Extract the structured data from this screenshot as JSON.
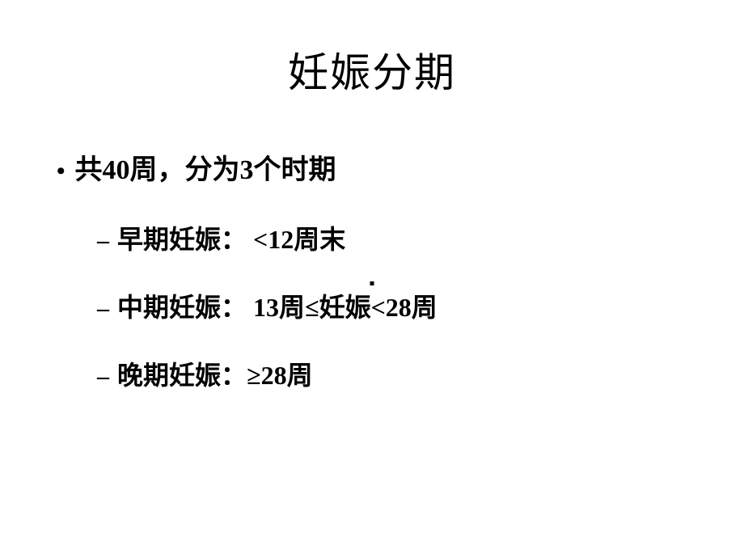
{
  "slide": {
    "title": "妊娠分期",
    "background_color": "#ffffff",
    "text_color": "#000000",
    "title_fontsize": 50,
    "bullet1_fontsize": 34,
    "bullet2_fontsize": 32,
    "level1": {
      "marker": "•",
      "text": "共40周，分为3个时期"
    },
    "level2_items": [
      {
        "marker": "–",
        "text": "早期妊娠： <12周末"
      },
      {
        "marker": "–",
        "text": "中期妊娠： 13周≤妊娠<28周"
      },
      {
        "marker": "–",
        "text": "晚期妊娠：≥28周"
      }
    ]
  }
}
